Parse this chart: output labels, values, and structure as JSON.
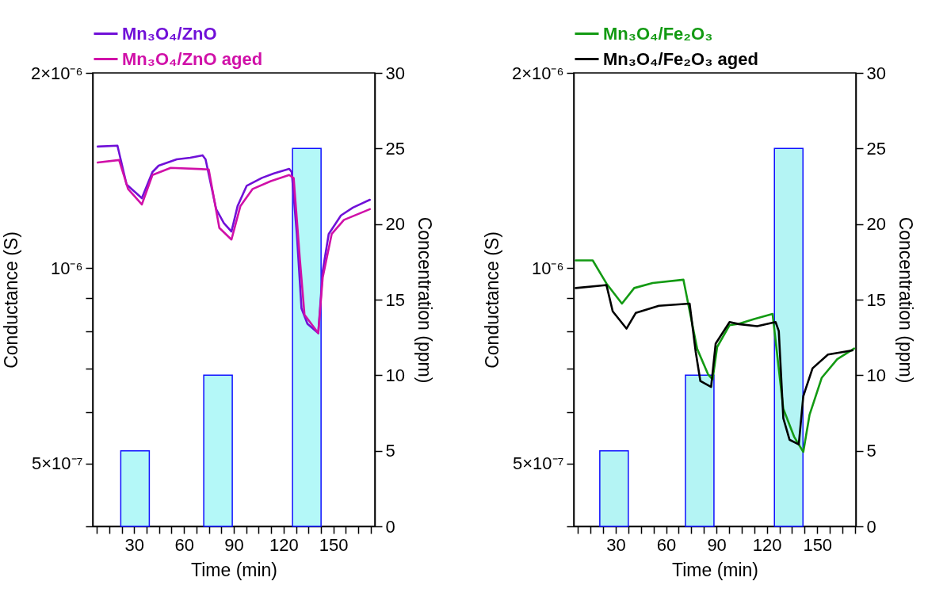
{
  "chart_data": [
    {
      "type": "line",
      "xlabel": "Time (min)",
      "ylabel": "Conductance (S)",
      "y2label": "Concentration (ppm)",
      "log": "y",
      "legend": "top",
      "xlim": [
        5,
        175
      ],
      "xticks": [
        {
          "value": 7.5,
          "label": null
        },
        {
          "value": 15,
          "label": null
        },
        {
          "value": 22.5,
          "label": null
        },
        30,
        {
          "value": 37.5,
          "label": null
        },
        {
          "value": 45,
          "label": null
        },
        {
          "value": 52.5,
          "label": null
        },
        60,
        {
          "value": 67.5,
          "label": null
        },
        {
          "value": 75,
          "label": null
        },
        {
          "value": 82.5,
          "label": null
        },
        90,
        {
          "value": 97.5,
          "label": null
        },
        {
          "value": 105,
          "label": null
        },
        {
          "value": 112.5,
          "label": null
        },
        120,
        {
          "value": 127.5,
          "label": null
        },
        {
          "value": 135,
          "label": null
        },
        {
          "value": 142.5,
          "label": null
        },
        150,
        {
          "value": 157.5,
          "label": null
        },
        {
          "value": 165,
          "label": null
        },
        {
          "value": 172.5,
          "label": null
        }
      ],
      "ylim": [
        4e-07,
        2e-06
      ],
      "yticks": [
        {
          "value": 4e-07,
          "label": null
        },
        {
          "value": 5e-07,
          "label": "5×10⁻⁷"
        },
        {
          "value": 6e-07,
          "label": null
        },
        {
          "value": 7e-07,
          "label": null
        },
        {
          "value": 8e-07,
          "label": null
        },
        {
          "value": 9e-07,
          "label": null
        },
        {
          "value": 1e-06,
          "label": "10⁻⁶"
        },
        {
          "value": 2e-06,
          "label": "2×10⁻⁶"
        }
      ],
      "y2lim": [
        0,
        30
      ],
      "y2ticks": [
        0,
        5,
        10,
        15,
        20,
        25,
        30
      ],
      "series": [
        {
          "type": "bar",
          "axis": "y2",
          "color": "#b4f8f8",
          "x": [
            30.5,
            80.5,
            134
          ],
          "values": [
            5,
            10,
            25
          ]
        },
        {
          "name": "Mn₃O₄/ZnO",
          "color": "#7010d8",
          "x": [
            8,
            19.9,
            25.4,
            34.6,
            41,
            44.7,
            55.6,
            63.7,
            71.2,
            73,
            79.4,
            84,
            88.6,
            92.3,
            97.8,
            107,
            114.2,
            123.4,
            124.9,
            128,
            130.8,
            134.4,
            140.9,
            143.6,
            147.2,
            154.6,
            161.8,
            172
          ],
          "values": [
            1.54e-06,
            1.545e-06,
            1.346e-06,
            1.282e-06,
            1.407e-06,
            1.439e-06,
            1.472e-06,
            1.48e-06,
            1.493e-06,
            1.472e-06,
            1.233e-06,
            1.174e-06,
            1.139e-06,
            1.247e-06,
            1.34e-06,
            1.378e-06,
            1.4e-06,
            1.423e-06,
            1.407e-06,
            1.129e-06,
            8.67e-07,
            8.21e-07,
            7.94e-07,
            9.9e-07,
            1.129e-06,
            1.206e-06,
            1.24e-06,
            1.275e-06
          ]
        },
        {
          "name": "Mn₃O₄/ZnO aged",
          "color": "#d010a8",
          "x": [
            8,
            20.9,
            26.3,
            34.6,
            41,
            52,
            74.9,
            81.3,
            88.6,
            94,
            101.4,
            112.3,
            123.4,
            126.1,
            129.8,
            132.6,
            140.9,
            143.6,
            149,
            156.4,
            172
          ],
          "values": [
            1.455e-06,
            1.468e-06,
            1.325e-06,
            1.254e-06,
            1.392e-06,
            1.428e-06,
            1.42e-06,
            1.154e-06,
            1.107e-06,
            1.247e-06,
            1.325e-06,
            1.362e-06,
            1.392e-06,
            1.377e-06,
            1.035e-06,
            8.48e-07,
            7.94e-07,
            9.68e-07,
            1.129e-06,
            1.187e-06,
            1.233e-06
          ]
        }
      ]
    },
    {
      "type": "line",
      "xlabel": "Time (min)",
      "ylabel": "Conductance (S)",
      "y2label": "Concentration (ppm)",
      "log": "y",
      "legend": "top",
      "xlim": [
        5,
        173
      ],
      "xticks": [
        {
          "value": 7.5,
          "label": null
        },
        {
          "value": 15,
          "label": null
        },
        {
          "value": 22.5,
          "label": null
        },
        30,
        {
          "value": 37.5,
          "label": null
        },
        {
          "value": 45,
          "label": null
        },
        {
          "value": 52.5,
          "label": null
        },
        60,
        {
          "value": 67.5,
          "label": null
        },
        {
          "value": 75,
          "label": null
        },
        {
          "value": 82.5,
          "label": null
        },
        90,
        {
          "value": 97.5,
          "label": null
        },
        {
          "value": 105,
          "label": null
        },
        {
          "value": 112.5,
          "label": null
        },
        120,
        {
          "value": 127.5,
          "label": null
        },
        {
          "value": 135,
          "label": null
        },
        {
          "value": 142.5,
          "label": null
        },
        150,
        {
          "value": 157.5,
          "label": null
        },
        {
          "value": 165,
          "label": null
        },
        {
          "value": 172.5,
          "label": null
        }
      ],
      "ylim": [
        4e-07,
        2e-06
      ],
      "yticks": [
        {
          "value": 4e-07,
          "label": null
        },
        {
          "value": 5e-07,
          "label": "5×10⁻⁷"
        },
        {
          "value": 6e-07,
          "label": null
        },
        {
          "value": 7e-07,
          "label": null
        },
        {
          "value": 8e-07,
          "label": null
        },
        {
          "value": 9e-07,
          "label": null
        },
        {
          "value": 1e-06,
          "label": "10⁻⁶"
        },
        {
          "value": 2e-06,
          "label": "2×10⁻⁶"
        }
      ],
      "y2lim": [
        0,
        30
      ],
      "y2ticks": [
        0,
        5,
        10,
        15,
        20,
        25,
        30
      ],
      "series": [
        {
          "type": "bar",
          "axis": "y2",
          "color": "#b4f4f4",
          "x": [
            29,
            80,
            133
          ],
          "values": [
            5,
            10,
            25
          ]
        },
        {
          "name": "Mn₃O₄/Fe₂O₃",
          "color": "#139a13",
          "x": [
            6.2,
            16.3,
            24.5,
            33.7,
            41,
            52,
            70.3,
            78.5,
            85,
            87.7,
            90.4,
            97.8,
            103.3,
            112.4,
            123.4,
            129.8,
            136.2,
            141.7,
            145.4,
            152.7,
            161.9,
            172
          ],
          "values": [
            1.028e-06,
            1.028e-06,
            9.47e-07,
            8.82e-07,
            9.32e-07,
            9.49e-07,
            9.6e-07,
            7.51e-07,
            6.86e-07,
            6.74e-07,
            7.56e-07,
            8.17e-07,
            8.21e-07,
            8.35e-07,
            8.5e-07,
            6.07e-07,
            5.5e-07,
            5.21e-07,
            5.94e-07,
            6.78e-07,
            7.24e-07,
            7.52e-07
          ]
        },
        {
          "name": "Mn₃O₄/Fe₂O₃ aged",
          "color": "#000000",
          "x": [
            6.2,
            24.5,
            28.2,
            36.4,
            41.9,
            55.7,
            74,
            77.6,
            80.4,
            86.8,
            89.5,
            97.8,
            103.3,
            114.2,
            125.2,
            127.1,
            129.8,
            133.5,
            139,
            141.7,
            147.2,
            156.4,
            171
          ],
          "values": [
            9.32e-07,
            9.42e-07,
            8.58e-07,
            8.07e-07,
            8.53e-07,
            8.75e-07,
            8.82e-07,
            7.44e-07,
            6.7e-07,
            6.56e-07,
            7.65e-07,
            8.26e-07,
            8.2e-07,
            8.14e-07,
            8.26e-07,
            8e-07,
            5.87e-07,
            5.44e-07,
            5.35e-07,
            6.35e-07,
            7.01e-07,
            7.36e-07,
            7.47e-07
          ]
        }
      ]
    }
  ]
}
